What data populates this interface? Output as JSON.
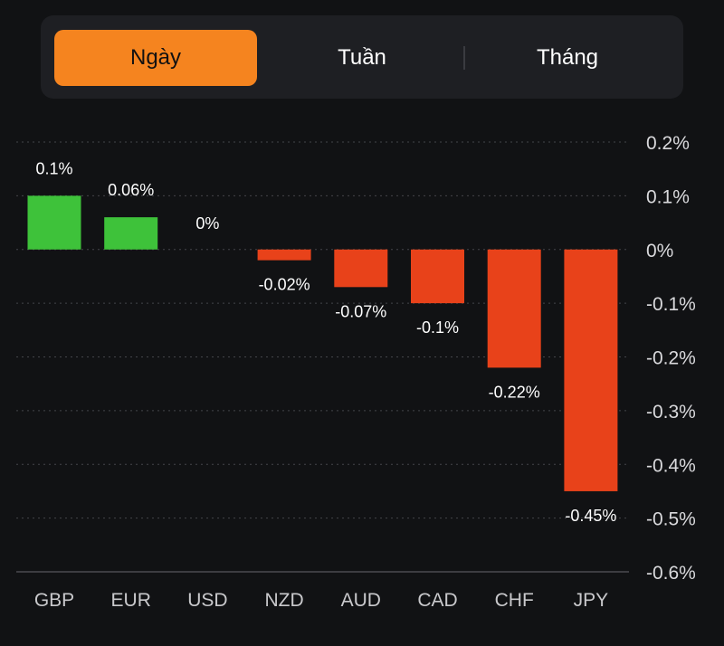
{
  "tabs": [
    {
      "label": "Ngày",
      "active": true
    },
    {
      "label": "Tuần",
      "active": false
    },
    {
      "label": "Tháng",
      "active": false
    }
  ],
  "colors": {
    "accent": "#f5841f",
    "positive": "#3ec23a",
    "negative": "#e8421a",
    "background": "#111214"
  },
  "chart_data": {
    "type": "bar",
    "categories": [
      "GBP",
      "EUR",
      "USD",
      "NZD",
      "AUD",
      "CAD",
      "CHF",
      "JPY"
    ],
    "values": [
      0.1,
      0.06,
      0,
      -0.02,
      -0.07,
      -0.1,
      -0.22,
      -0.45
    ],
    "value_labels": [
      "0.1%",
      "0.06%",
      "0%",
      "-0.02%",
      "-0.07%",
      "-0.1%",
      "-0.22%",
      "-0.45%"
    ],
    "ylim": [
      -0.6,
      0.2
    ],
    "y_ticks": [
      0.2,
      0.1,
      0,
      -0.1,
      -0.2,
      -0.3,
      -0.4,
      -0.5,
      -0.6
    ],
    "y_tick_labels": [
      "0.2%",
      "0.1%",
      "0%",
      "-0.1%",
      "-0.2%",
      "-0.3%",
      "-0.4%",
      "-0.5%",
      "-0.6%"
    ],
    "y_axis_side": "right",
    "grid": true,
    "title": "",
    "xlabel": "",
    "ylabel": ""
  }
}
